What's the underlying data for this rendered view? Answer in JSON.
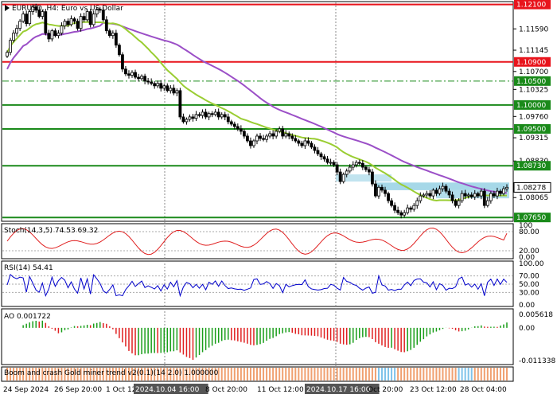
{
  "chart_title": "EURUSD, H4:  Euro vs US Dollar",
  "colors": {
    "resistance_red": "#e8141c",
    "support_green": "#1a8a1a",
    "ma_fast": "#9acd32",
    "ma_slow": "#9b4fc7",
    "zone": "#a6d8e8",
    "bull": "#000000",
    "bear": "#000000",
    "stoch": "#e02020",
    "rsi": "#0000cc",
    "ao_up": "#1a9e1a",
    "ao_down": "#e02020",
    "strip_orange": "#f0a070",
    "strip_blue": "#7fc3ea"
  },
  "price_axis": {
    "ticks": [
      "1.12100",
      "1.11590",
      "1.11145",
      "1.10700",
      "1.10325",
      "1.09760",
      "1.09315",
      "1.08830",
      "1.08065",
      "1.07650"
    ],
    "levels": [
      {
        "value": "1.12100",
        "style": "red-solid"
      },
      {
        "value": "1.10900",
        "style": "red-solid"
      },
      {
        "value": "1.10500",
        "style": "green-dashdot"
      },
      {
        "value": "1.10000",
        "style": "green-solid"
      },
      {
        "value": "1.09500",
        "style": "green-solid"
      },
      {
        "value": "1.08730",
        "style": "green-solid"
      },
      {
        "value": "1.07650",
        "style": "green-solid"
      }
    ],
    "current_price": "1.08278"
  },
  "stoch": {
    "label": "Stoch(14,3,5) 74.53 69.32",
    "ticks": [
      "100",
      "80.00",
      "20.00",
      "0.00"
    ],
    "value": 74.53
  },
  "rsi": {
    "label": "RSI(14) 54.41",
    "ticks": [
      "100.00",
      "70.00",
      "50.00",
      "30.00",
      "0.00"
    ],
    "value": 54.41
  },
  "ao": {
    "label": "AO 0.001722",
    "ticks": [
      "0.005618",
      "0.00",
      "-0.011338"
    ],
    "value": 0.001722
  },
  "strip": {
    "label": "Boom and crash Gold miner trend v2(0.1)(14 2.0) 1.000000"
  },
  "time_axis": {
    "labels": [
      "24 Sep 2024",
      "26 Sep 20:00",
      "1 Oct 12",
      "2024.10.04 16:00",
      "8 Oct 20:00",
      "11 Oct 12:00",
      "2024.10.17 16:00",
      "Oct 20:00",
      "23 Oct 12:00",
      "28 Oct 04:00"
    ],
    "highlighted": [
      "2024.10.04 16:00",
      "2024.10.17 16:00"
    ]
  },
  "chart_data": {
    "type": "candlestick",
    "symbol": "EURUSD",
    "timeframe": "H4",
    "close": [
      1.111,
      1.1135,
      1.115,
      1.116,
      1.1175,
      1.119,
      1.117,
      1.1195,
      1.1205,
      1.1198,
      1.1185,
      1.1195,
      1.115,
      1.1138,
      1.1155,
      1.1145,
      1.115,
      1.1165,
      1.1175,
      1.1168,
      1.118,
      1.1175,
      1.116,
      1.1185,
      1.1178,
      1.1195,
      1.1168,
      1.119,
      1.12,
      1.1198,
      1.1178,
      1.1155,
      1.1145,
      1.115,
      1.1125,
      1.1105,
      1.1075,
      1.1065,
      1.1062,
      1.1068,
      1.1058,
      1.1055,
      1.106,
      1.105,
      1.1048,
      1.1045,
      1.104,
      1.1045,
      1.1035,
      1.104,
      1.103,
      1.1035,
      1.1025,
      1.103,
      1.0975,
      1.0965,
      1.097,
      1.0975,
      1.0972,
      1.098,
      1.0978,
      1.0985,
      1.0975,
      1.0982,
      1.098,
      1.0985,
      1.0975,
      1.098,
      1.0975,
      1.0965,
      1.096,
      1.0955,
      1.095,
      1.0945,
      1.0935,
      1.0925,
      1.0915,
      1.0925,
      1.0935,
      1.093,
      1.0928,
      1.0935,
      1.094,
      1.0935,
      1.0945,
      1.095,
      1.0935,
      1.094,
      1.0935,
      1.093,
      1.0925,
      1.092,
      1.0915,
      1.0925,
      1.092,
      1.0912,
      1.0905,
      1.0898,
      1.0892,
      1.0887,
      1.088,
      1.088,
      1.0875,
      1.086,
      1.084,
      1.0855,
      1.0862,
      1.087,
      1.0875,
      1.088,
      1.0878,
      1.087,
      1.0865,
      1.086,
      1.0835,
      1.081,
      1.0828,
      1.0822,
      1.0815,
      1.08,
      1.079,
      1.078,
      1.0775,
      1.077,
      1.0775,
      1.0785,
      1.0782,
      1.079,
      1.08,
      1.081,
      1.0812,
      1.0815,
      1.081,
      1.0822,
      1.0815,
      1.0825,
      1.083,
      1.082,
      1.0812,
      1.08,
      1.079,
      1.08,
      1.0815,
      1.081,
      1.0812,
      1.0808,
      1.0815,
      1.081,
      1.082,
      1.079,
      1.08,
      1.0815,
      1.081,
      1.082,
      1.0815,
      1.0825,
      1.0828
    ]
  }
}
